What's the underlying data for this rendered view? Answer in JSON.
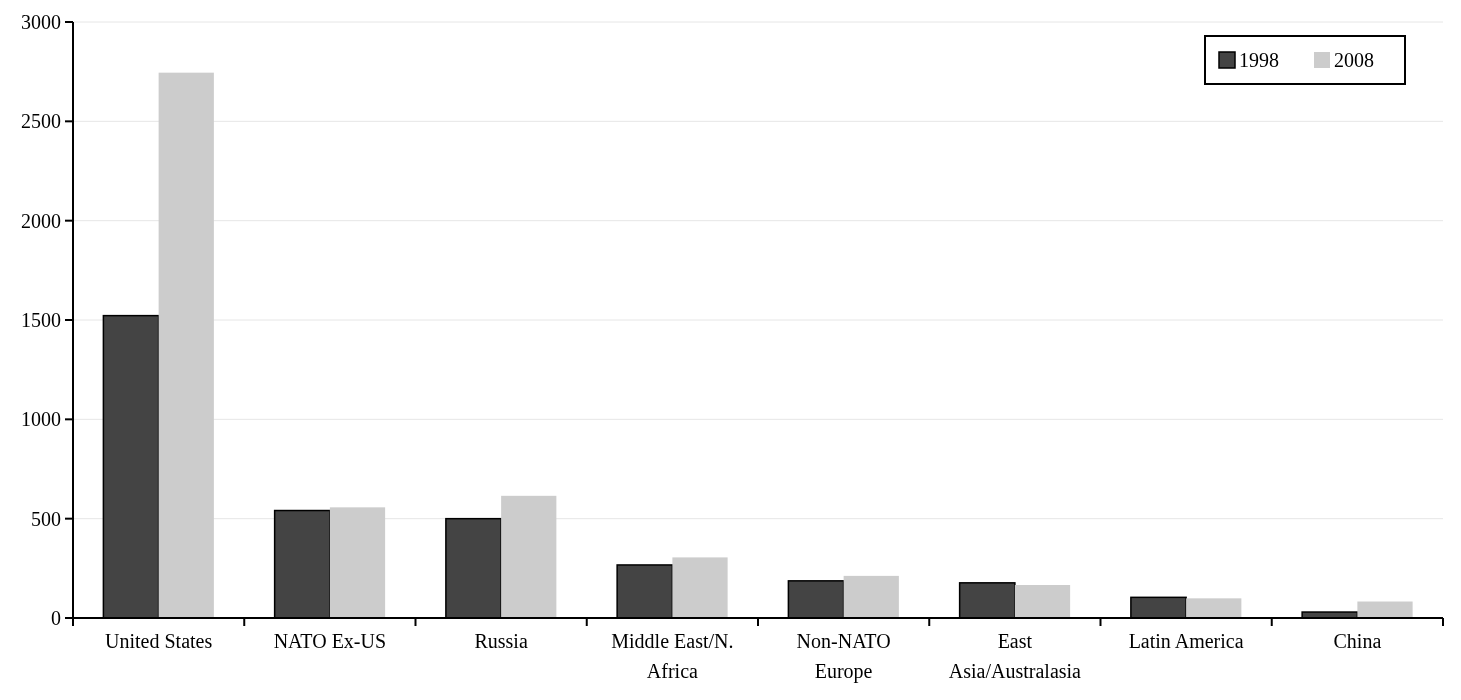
{
  "chart_data": {
    "type": "bar",
    "categories": [
      "United States",
      "NATO Ex-US",
      "Russia",
      "Middle East/N. Africa",
      "Non-NATO Europe",
      "East Asia/Australasia",
      "Latin America",
      "China"
    ],
    "series": [
      {
        "name": "1998",
        "color": "#444444",
        "values": [
          1522,
          541,
          500,
          267,
          187,
          177,
          104,
          30
        ]
      },
      {
        "name": "2008",
        "color": "#cccccc",
        "values": [
          2745,
          557,
          615,
          305,
          212,
          166,
          99,
          83
        ]
      }
    ],
    "ylim": [
      0,
      3000
    ],
    "yticks": [
      0,
      500,
      1000,
      1500,
      2000,
      2500,
      3000
    ],
    "grid": "y",
    "legend": "top right"
  }
}
